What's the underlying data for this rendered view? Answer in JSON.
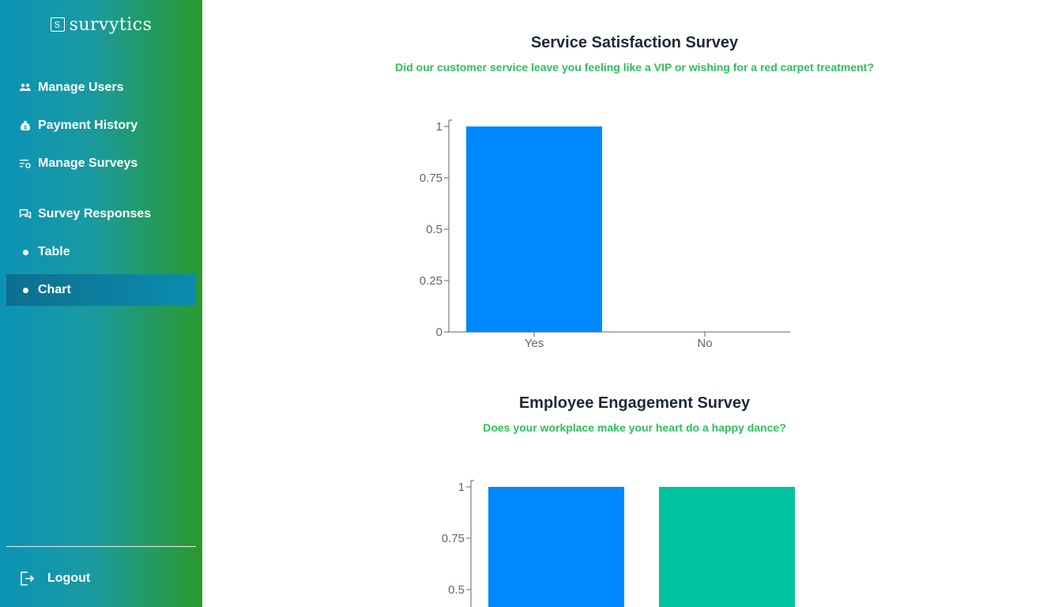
{
  "sidebar": {
    "logo_icon": "S",
    "logo_text": "survytics",
    "items": [
      {
        "label": "Manage Users",
        "icon": "users-icon"
      },
      {
        "label": "Payment History",
        "icon": "money-bag-icon"
      },
      {
        "label": "Manage Surveys",
        "icon": "survey-settings-icon"
      },
      {
        "label": "Survey Responses",
        "icon": "chat-icon"
      },
      {
        "label": "Table",
        "icon": "dot-icon"
      },
      {
        "label": "Chart",
        "icon": "dot-icon",
        "active": true
      }
    ],
    "logout_label": "Logout"
  },
  "colors": {
    "accent_blue": "#0088fe",
    "accent_teal": "#00c49f",
    "subtitle_green": "#2fbf5a"
  },
  "chart_data": [
    {
      "type": "bar",
      "title": "Service Satisfaction Survey",
      "subtitle": "Did our customer service leave you feeling like a VIP or wishing for a red carpet treatment?",
      "categories": [
        "Yes",
        "No"
      ],
      "values": [
        1,
        0
      ],
      "colors": [
        "#0088fe",
        "#00c49f"
      ],
      "yticks": [
        "0",
        "0.25",
        "0.5",
        "0.75",
        "1"
      ],
      "ylim": [
        0,
        1
      ]
    },
    {
      "type": "bar",
      "title": "Employee Engagement Survey",
      "subtitle": "Does your workplace make your heart do a happy dance?",
      "categories": [
        "",
        ""
      ],
      "values": [
        1,
        1
      ],
      "colors": [
        "#0088fe",
        "#00c49f"
      ],
      "yticks": [
        "0.5",
        "0.75",
        "1"
      ],
      "ylim": [
        0,
        1
      ]
    }
  ]
}
